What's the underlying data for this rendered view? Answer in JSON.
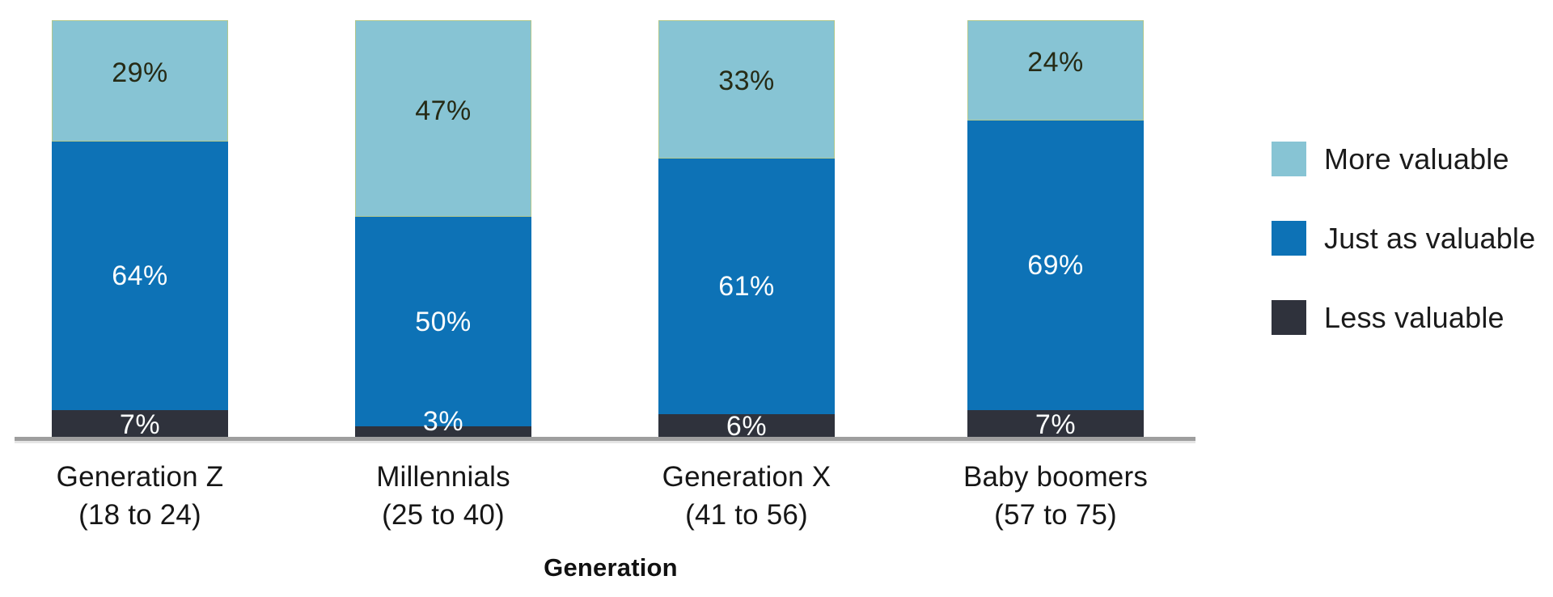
{
  "chart_data": {
    "type": "bar",
    "subtype": "stacked-100-percent-vertical",
    "title": "",
    "xlabel": "Generation",
    "ylabel": "",
    "ylim": [
      0,
      100
    ],
    "grid": false,
    "legend_position": "right",
    "value_suffix": "%",
    "categories": [
      "Generation Z",
      "Millennials",
      "Generation X",
      "Baby boomers"
    ],
    "category_sublabels": [
      "(18 to 24)",
      "(25 to 40)",
      "(41 to 56)",
      "(57 to 75)"
    ],
    "series": [
      {
        "name": "More valuable",
        "color": "#87c4d4",
        "values": [
          29,
          47,
          33,
          24
        ]
      },
      {
        "name": "Just as valuable",
        "color": "#0d72b6",
        "values": [
          64,
          50,
          61,
          69
        ]
      },
      {
        "name": "Less valuable",
        "color": "#2f323c",
        "values": [
          7,
          3,
          6,
          7
        ]
      }
    ],
    "label_colors": {
      "on_light_segment": "#262b16",
      "on_dark_segment": "#fbfdfd"
    },
    "axis_line_color": "#9e9e9e"
  }
}
